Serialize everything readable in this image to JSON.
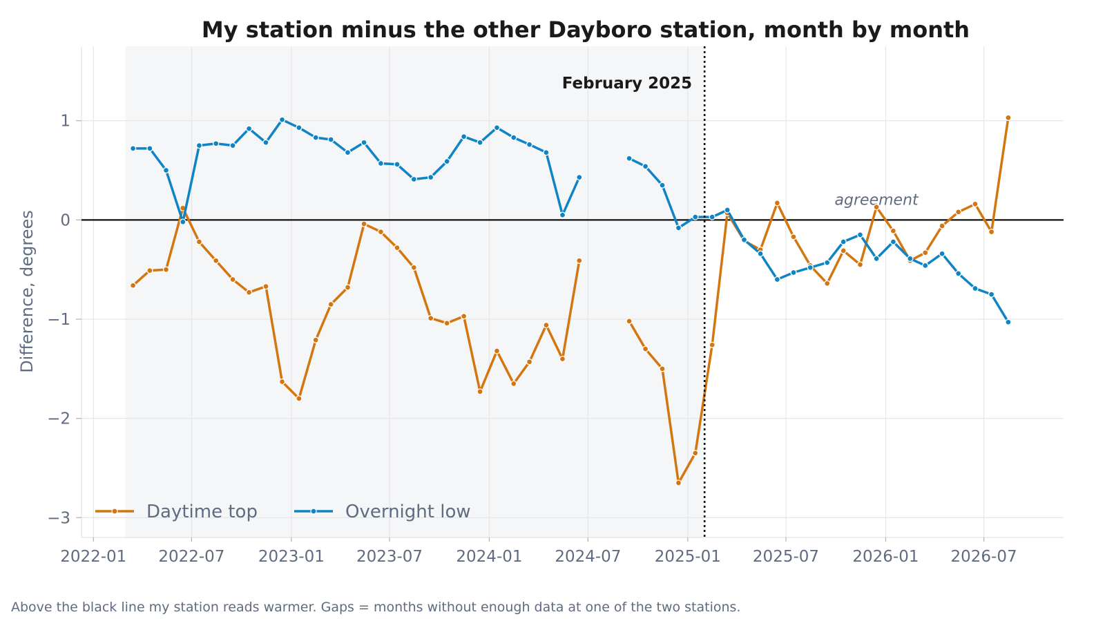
{
  "chart_data": {
    "type": "line",
    "title": "My station minus the other Dayboro station, month by month",
    "xlabel": "",
    "ylabel": "Difference, degrees",
    "x_tick_labels": [
      "2022-01",
      "2022-07",
      "2023-01",
      "2023-07",
      "2024-01",
      "2024-07",
      "2025-01",
      "2025-07",
      "2026-01",
      "2026-07"
    ],
    "y_ticks": [
      1,
      0,
      -1,
      -2,
      -3
    ],
    "y_tick_labels": [
      "1",
      "0",
      "−1",
      "−2",
      "−3"
    ],
    "xlim": [
      "2021-12-10",
      "2026-11-25"
    ],
    "ylim": [
      -3.2,
      1.75
    ],
    "grid": true,
    "legend_position": "bottom-left",
    "reference_line": {
      "y": 0,
      "label": "agreement"
    },
    "event_line": {
      "x": "2025-02-01",
      "label": "February 2025"
    },
    "shaded_period": {
      "from": "2022-03-01",
      "to": "2025-02-01"
    },
    "series": [
      {
        "name": "Daytime top",
        "color": "#d4760f",
        "points": [
          [
            "2022-03-15",
            -0.66
          ],
          [
            "2022-04-15",
            -0.51
          ],
          [
            "2022-05-15",
            -0.5
          ],
          [
            "2022-06-15",
            0.12
          ],
          [
            "2022-07-15",
            -0.22
          ],
          [
            "2022-08-15",
            -0.41
          ],
          [
            "2022-09-15",
            -0.6
          ],
          [
            "2022-10-15",
            -0.73
          ],
          [
            "2022-11-15",
            -0.67
          ],
          [
            "2022-12-15",
            -1.63
          ],
          [
            "2023-01-15",
            -1.8
          ],
          [
            "2023-02-15",
            -1.21
          ],
          [
            "2023-03-15",
            -0.85
          ],
          [
            "2023-04-15",
            -0.68
          ],
          [
            "2023-05-15",
            -0.04
          ],
          [
            "2023-06-15",
            -0.12
          ],
          [
            "2023-07-15",
            -0.28
          ],
          [
            "2023-08-15",
            -0.48
          ],
          [
            "2023-09-15",
            -0.99
          ],
          [
            "2023-10-15",
            -1.04
          ],
          [
            "2023-11-15",
            -0.97
          ],
          [
            "2023-12-15",
            -1.73
          ],
          [
            "2024-01-15",
            -1.32
          ],
          [
            "2024-02-15",
            -1.65
          ],
          [
            "2024-03-15",
            -1.43
          ],
          [
            "2024-04-15",
            -1.06
          ],
          [
            "2024-05-15",
            -1.4
          ],
          [
            "2024-06-15",
            -0.41
          ],
          [
            "2024-07-15",
            null
          ],
          [
            "2024-08-15",
            null
          ],
          [
            "2024-09-15",
            -1.02
          ],
          [
            "2024-10-15",
            -1.3
          ],
          [
            "2024-11-15",
            -1.5
          ],
          [
            "2024-12-15",
            -2.65
          ],
          [
            "2025-01-15",
            -2.35
          ],
          [
            "2025-02-15",
            -1.26
          ],
          [
            "2025-03-15",
            0.07
          ],
          [
            "2025-04-15",
            -0.21
          ],
          [
            "2025-05-15",
            -0.3
          ],
          [
            "2025-06-15",
            0.17
          ],
          [
            "2025-07-15",
            -0.17
          ],
          [
            "2025-08-15",
            -0.46
          ],
          [
            "2025-09-15",
            -0.64
          ],
          [
            "2025-10-15",
            -0.31
          ],
          [
            "2025-11-15",
            -0.45
          ],
          [
            "2025-12-15",
            0.13
          ],
          [
            "2026-01-15",
            -0.11
          ],
          [
            "2026-02-15",
            -0.41
          ],
          [
            "2026-03-15",
            -0.33
          ],
          [
            "2026-04-15",
            -0.06
          ],
          [
            "2026-05-15",
            0.08
          ],
          [
            "2026-06-15",
            0.16
          ],
          [
            "2026-07-15",
            -0.12
          ],
          [
            "2026-08-15",
            1.03
          ]
        ]
      },
      {
        "name": "Overnight low",
        "color": "#0e84c4",
        "points": [
          [
            "2022-03-15",
            0.72
          ],
          [
            "2022-04-15",
            0.72
          ],
          [
            "2022-05-15",
            0.5
          ],
          [
            "2022-06-15",
            -0.02
          ],
          [
            "2022-07-15",
            0.75
          ],
          [
            "2022-08-15",
            0.77
          ],
          [
            "2022-09-15",
            0.75
          ],
          [
            "2022-10-15",
            0.92
          ],
          [
            "2022-11-15",
            0.78
          ],
          [
            "2022-12-15",
            1.01
          ],
          [
            "2023-01-15",
            0.93
          ],
          [
            "2023-02-15",
            0.83
          ],
          [
            "2023-03-15",
            0.81
          ],
          [
            "2023-04-15",
            0.68
          ],
          [
            "2023-05-15",
            0.78
          ],
          [
            "2023-06-15",
            0.57
          ],
          [
            "2023-07-15",
            0.56
          ],
          [
            "2023-08-15",
            0.41
          ],
          [
            "2023-09-15",
            0.43
          ],
          [
            "2023-10-15",
            0.59
          ],
          [
            "2023-11-15",
            0.84
          ],
          [
            "2023-12-15",
            0.78
          ],
          [
            "2024-01-15",
            0.93
          ],
          [
            "2024-02-15",
            0.83
          ],
          [
            "2024-03-15",
            0.76
          ],
          [
            "2024-04-15",
            0.68
          ],
          [
            "2024-05-15",
            0.05
          ],
          [
            "2024-06-15",
            0.43
          ],
          [
            "2024-07-15",
            null
          ],
          [
            "2024-08-15",
            null
          ],
          [
            "2024-09-15",
            0.62
          ],
          [
            "2024-10-15",
            0.54
          ],
          [
            "2024-11-15",
            0.35
          ],
          [
            "2024-12-15",
            -0.08
          ],
          [
            "2025-01-15",
            0.03
          ],
          [
            "2025-02-15",
            0.03
          ],
          [
            "2025-03-15",
            0.1
          ],
          [
            "2025-04-15",
            -0.2
          ],
          [
            "2025-05-15",
            -0.34
          ],
          [
            "2025-06-15",
            -0.6
          ],
          [
            "2025-07-15",
            -0.53
          ],
          [
            "2025-08-15",
            -0.48
          ],
          [
            "2025-09-15",
            -0.43
          ],
          [
            "2025-10-15",
            -0.22
          ],
          [
            "2025-11-15",
            -0.15
          ],
          [
            "2025-12-15",
            -0.39
          ],
          [
            "2026-01-15",
            -0.22
          ],
          [
            "2026-02-15",
            -0.39
          ],
          [
            "2026-03-15",
            -0.46
          ],
          [
            "2026-04-15",
            -0.34
          ],
          [
            "2026-05-15",
            -0.54
          ],
          [
            "2026-06-15",
            -0.69
          ],
          [
            "2026-07-15",
            -0.75
          ],
          [
            "2026-08-15",
            -1.03
          ]
        ]
      }
    ]
  },
  "footnote": "Above the black line my station reads warmer. Gaps = months without enough data at one of the two stations."
}
